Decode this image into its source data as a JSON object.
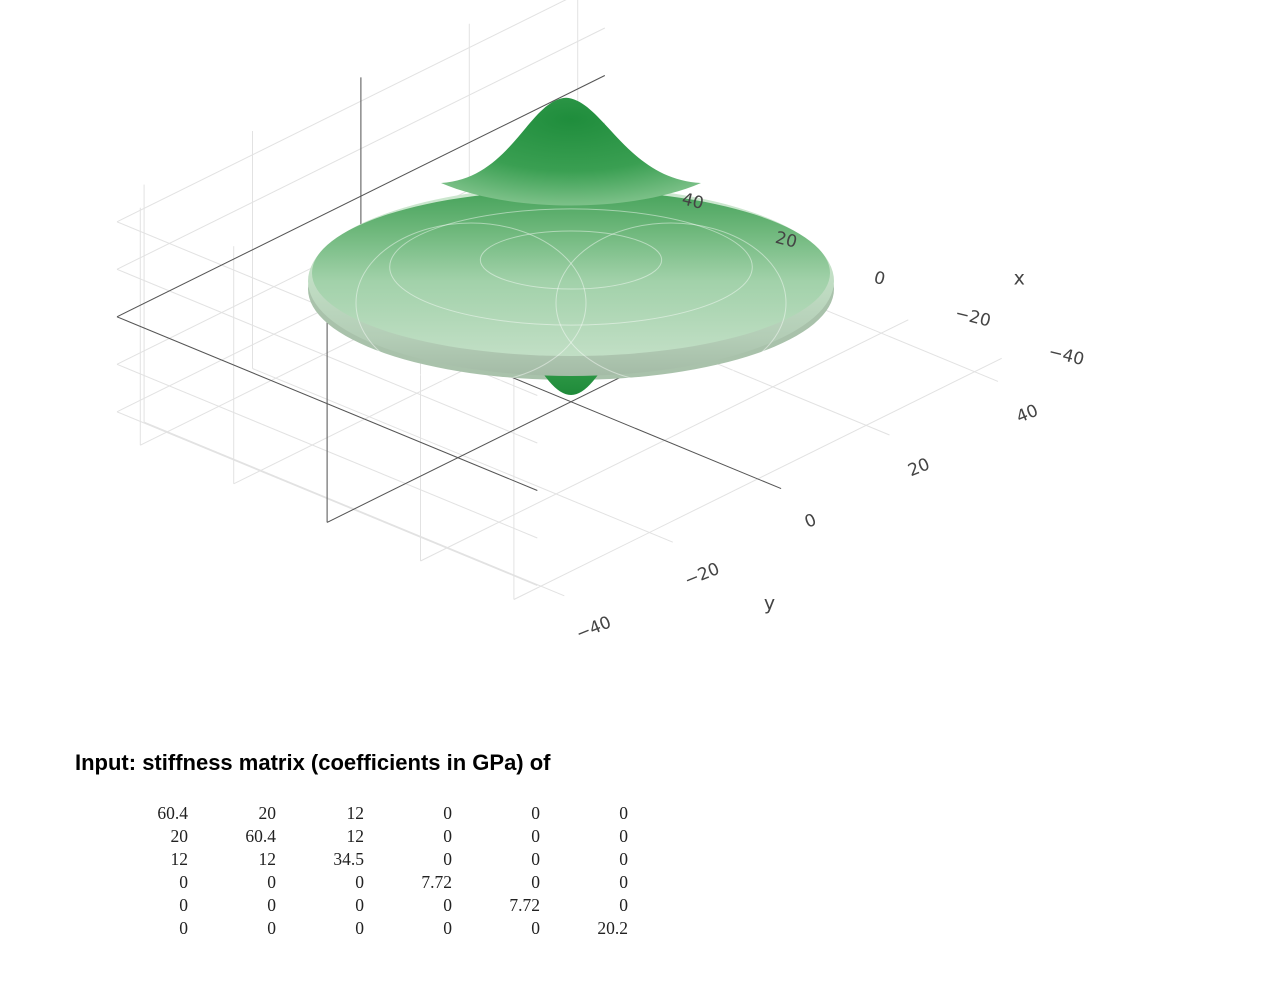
{
  "chart_data": {
    "type": "surface3d",
    "title": "",
    "surface_color": "#2e9645",
    "surface_light_color": "#c2dfc5",
    "axes": {
      "x": {
        "title": "x",
        "range": [
          -45,
          45
        ],
        "ticks": [
          -40,
          -20,
          0,
          20,
          40
        ],
        "tick_labels": [
          "−40",
          "−20",
          "0",
          "20",
          "40"
        ]
      },
      "y": {
        "title": "y",
        "range": [
          -45,
          45
        ],
        "ticks": [
          -40,
          -20,
          0,
          20,
          40
        ],
        "tick_labels": [
          "−40",
          "−20",
          "0",
          "20",
          "40"
        ]
      },
      "z": {
        "title": "",
        "range": [
          -25,
          25
        ],
        "ticks": []
      }
    },
    "grid": true,
    "surface_shape": {
      "equatorial_radius": 48,
      "polar_peak_height": 24,
      "description_hidden": true
    }
  },
  "input": {
    "heading": "Input: stiffness matrix (coefficients in GPa) of",
    "matrix": [
      [
        "60.4",
        "20",
        "12",
        "0",
        "0",
        "0"
      ],
      [
        "20",
        "60.4",
        "12",
        "0",
        "0",
        "0"
      ],
      [
        "12",
        "12",
        "34.5",
        "0",
        "0",
        "0"
      ],
      [
        "0",
        "0",
        "0",
        "7.72",
        "0",
        "0"
      ],
      [
        "0",
        "0",
        "0",
        "0",
        "7.72",
        "0"
      ],
      [
        "0",
        "0",
        "0",
        "0",
        "0",
        "20.2"
      ]
    ]
  }
}
